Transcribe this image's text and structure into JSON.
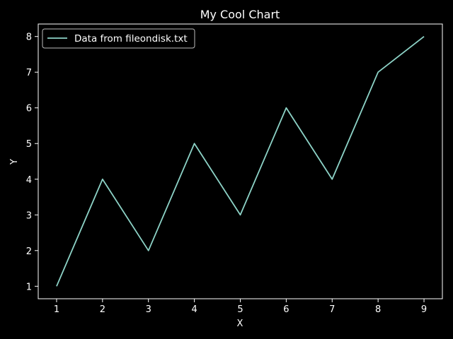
{
  "chart_data": {
    "type": "line",
    "title": "My Cool Chart",
    "xlabel": "X",
    "ylabel": "Y",
    "x": [
      1,
      2,
      3,
      4,
      5,
      6,
      7,
      8,
      9
    ],
    "series": [
      {
        "name": "Data from fileondisk.txt",
        "values": [
          1,
          4,
          2,
          5,
          3,
          6,
          4,
          7,
          8
        ],
        "color": "#8dd3c7"
      }
    ],
    "xticks": [
      "1",
      "2",
      "3",
      "4",
      "5",
      "6",
      "7",
      "8",
      "9"
    ],
    "yticks": [
      "1",
      "2",
      "3",
      "4",
      "5",
      "6",
      "7",
      "8"
    ],
    "xlim": [
      0.6,
      9.4
    ],
    "ylim": [
      0.65,
      8.35
    ],
    "grid": false,
    "legend_position": "upper-left"
  },
  "colors": {
    "background": "#000000",
    "axes": "#ffffff",
    "text": "#ffffff"
  }
}
